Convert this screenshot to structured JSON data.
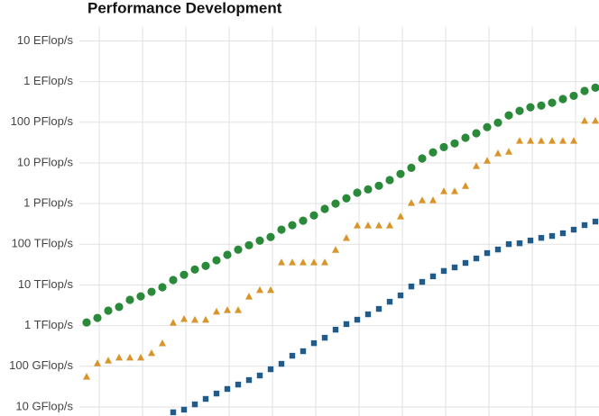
{
  "chart_data": {
    "type": "scatter",
    "title": "Performance Development",
    "log_scale": true,
    "grid": true,
    "ylim": [
      6,
      22000000000
    ],
    "yticks": [
      {
        "value": 10,
        "label": "10 GFlop/s"
      },
      {
        "value": 100,
        "label": "100 GFlop/s"
      },
      {
        "value": 1000,
        "label": "1 TFlop/s"
      },
      {
        "value": 10000,
        "label": "10 TFlop/s"
      },
      {
        "value": 100000,
        "label": "100 TFlop/s"
      },
      {
        "value": 1000000,
        "label": "1 PFlop/s"
      },
      {
        "value": 10000000,
        "label": "10 PFlop/s"
      },
      {
        "value": 100000000,
        "label": "100 PFlop/s"
      },
      {
        "value": 1000000000,
        "label": "1 EFlop/s"
      },
      {
        "value": 10000000000,
        "label": "10 EFlop/s"
      }
    ],
    "series": [
      {
        "color": "#2a8a3a",
        "marker": "circle",
        "values": [
          1200,
          1550,
          2340,
          2880,
          4300,
          5250,
          6800,
          8800,
          13200,
          17800,
          24000,
          29500,
          40500,
          55000,
          74000,
          95000,
          123000,
          151000,
          229000,
          295000,
          380000,
          513000,
          741000,
          1000000,
          1350000,
          1860000,
          2240000,
          2750000,
          3800000,
          5370000,
          7590000,
          12900000,
          18200000,
          24500000,
          30200000,
          41700000,
          53700000,
          75900000,
          97700000,
          148000000,
          191000000,
          234000000,
          257000000,
          302000000,
          372000000,
          447000000,
          589000000,
          708000000
        ]
      },
      {
        "color": "#d9952a",
        "marker": "triangle",
        "values": [
          56,
          120,
          141,
          166,
          166,
          166,
          214,
          372,
          1200,
          1480,
          1410,
          1410,
          2240,
          2450,
          2450,
          5250,
          7590,
          7590,
          36300,
          36300,
          36300,
          36300,
          36300,
          74000,
          145000,
          295000,
          295000,
          295000,
          295000,
          490000,
          1050000,
          1230000,
          1230000,
          2040000,
          2040000,
          2750000,
          8510000,
          11500000,
          17400000,
          19100000,
          35500000,
          35500000,
          35500000,
          35500000,
          35500000,
          35500000,
          110000000,
          110000000
        ]
      },
      {
        "color": "#1f5c8c",
        "marker": "square",
        "values": [
          null,
          null,
          null,
          null,
          null,
          null,
          null,
          null,
          7.4,
          8.6,
          11.6,
          15.8,
          21.4,
          27.7,
          35.6,
          45.9,
          59.4,
          84.6,
          115,
          182,
          235,
          371,
          504,
          795,
          1090,
          1400,
          1900,
          2580,
          3870,
          5540,
          9200,
          11900,
          16300,
          22100,
          27000,
          34800,
          44900,
          60900,
          74500,
          101000,
          106000,
          124000,
          144000,
          160000,
          187000,
          229000,
          296000,
          362000
        ]
      }
    ]
  }
}
